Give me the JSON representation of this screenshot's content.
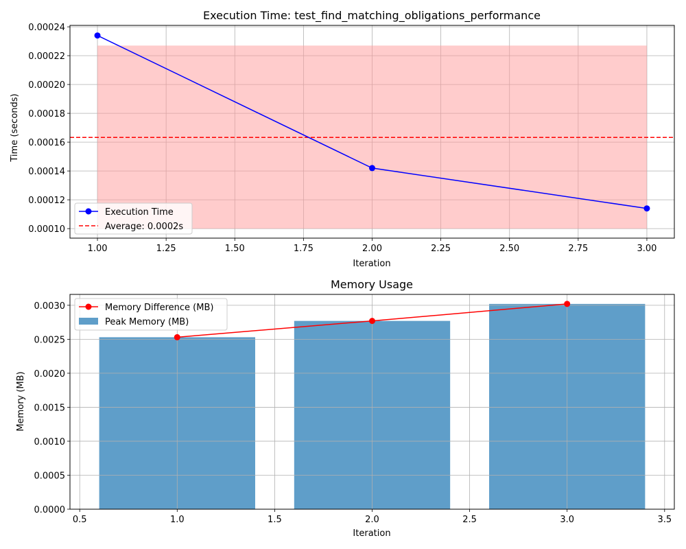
{
  "chart_data": [
    {
      "type": "line",
      "title": "Execution Time: test_find_matching_obligations_performance",
      "xlabel": "Iteration",
      "ylabel": "Time (seconds)",
      "xlim": [
        0.9,
        3.1
      ],
      "ylim": [
        9.34e-05,
        0.000241
      ],
      "x_ticks": [
        1.0,
        1.25,
        1.5,
        1.75,
        2.0,
        2.25,
        2.5,
        2.75,
        3.0
      ],
      "x_tick_labels": [
        "1.00",
        "1.25",
        "1.50",
        "1.75",
        "2.00",
        "2.25",
        "2.50",
        "2.75",
        "3.00"
      ],
      "y_ticks": [
        0.0001,
        0.00012,
        0.00014,
        0.00016,
        0.00018,
        0.0002,
        0.00022,
        0.00024
      ],
      "y_tick_labels": [
        "0.00010",
        "0.00012",
        "0.00014",
        "0.00016",
        "0.00018",
        "0.00020",
        "0.00022",
        "0.00024"
      ],
      "grid": true,
      "legend_position": "lower-left",
      "series": [
        {
          "name": "Execution Time",
          "x": [
            1,
            2,
            3
          ],
          "y": [
            0.000234,
            0.000142,
            0.000114
          ],
          "color": "#0000ff",
          "marker": "circle"
        }
      ],
      "average_line": {
        "name": "Average: 0.0002s",
        "y": 0.0001633,
        "color": "#ff0000",
        "style": "dashed"
      },
      "shaded_band": {
        "x": [
          1,
          3
        ],
        "y": [
          0.0001,
          0.000227
        ],
        "color": "#ff9999",
        "opacity": 0.5
      }
    },
    {
      "type": "bar",
      "title": "Memory Usage",
      "xlabel": "Iteration",
      "ylabel": "Memory (MB)",
      "xlim": [
        0.45,
        3.55
      ],
      "ylim": [
        0,
        0.00316
      ],
      "x_ticks": [
        0.5,
        1.0,
        1.5,
        2.0,
        2.5,
        3.0,
        3.5
      ],
      "x_tick_labels": [
        "0.5",
        "1.0",
        "1.5",
        "2.0",
        "2.5",
        "3.0",
        "3.5"
      ],
      "y_ticks": [
        0.0,
        0.0005,
        0.001,
        0.0015,
        0.002,
        0.0025,
        0.003
      ],
      "y_tick_labels": [
        "0.0000",
        "0.0005",
        "0.0010",
        "0.0015",
        "0.0020",
        "0.0025",
        "0.0030"
      ],
      "grid": true,
      "legend_position": "upper-left",
      "bar_width": 0.8,
      "series": [
        {
          "name": "Peak Memory (MB)",
          "type": "bar",
          "x": [
            1,
            2,
            3
          ],
          "values": [
            0.00253,
            0.00277,
            0.00302
          ],
          "color": "#5f9ec9"
        },
        {
          "name": "Memory Difference (MB)",
          "type": "line",
          "x": [
            1,
            2,
            3
          ],
          "values": [
            0.00253,
            0.00277,
            0.00302
          ],
          "color": "#ff0000",
          "marker": "circle"
        }
      ]
    }
  ]
}
